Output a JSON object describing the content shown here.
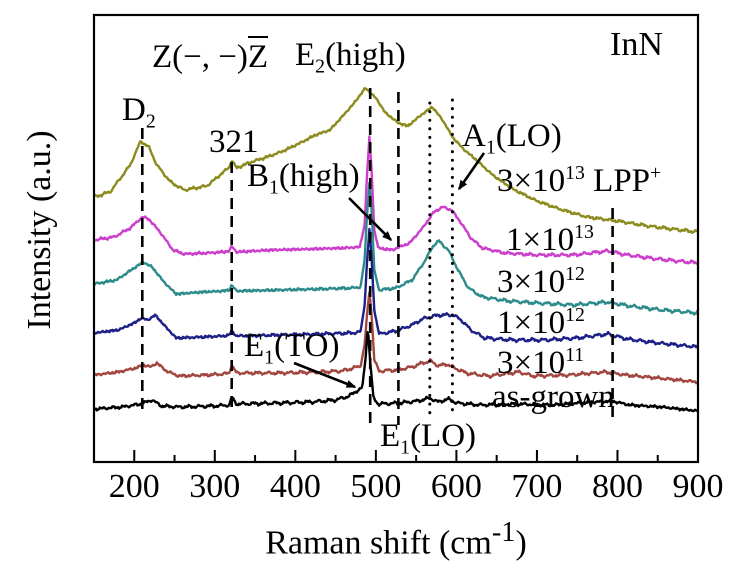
{
  "chart_data": {
    "type": "line",
    "title": "",
    "sample": "InN",
    "scattering_geometry": {
      "pre": "Z(−, −)",
      "barred": "Z"
    },
    "xlabel": {
      "pre": "Raman shift (cm",
      "sup": "-1",
      "post": ")"
    },
    "ylabel": "Intensity (a.u.)",
    "x_range": [
      150,
      900
    ],
    "x_axis_unit": "cm-1",
    "y_axis_unit": "arbitrary units (stacked offsets, 0-450 scale)",
    "x_major_ticks": [
      200,
      300,
      400,
      500,
      600,
      700,
      800,
      900
    ],
    "x_minor_ticks": [
      250,
      350,
      450,
      550,
      650,
      750,
      850
    ],
    "grid": false,
    "legend_position": "right-inline",
    "guides": [
      {
        "v": 210,
        "style": "dashed",
        "marks": "D2"
      },
      {
        "v": 321,
        "style": "dashed",
        "marks": "321"
      },
      {
        "v": 493,
        "style": "dashed",
        "marks": "E2(high)"
      },
      {
        "v": 528,
        "style": "dashed",
        "marks": "B1(high)"
      },
      {
        "v": 567,
        "style": "dotted",
        "marks": "A1(LO)"
      },
      {
        "v": 595,
        "style": "dotted",
        "marks": "E1(LO)"
      },
      {
        "v": 794,
        "style": "dashed",
        "marks": "LPP"
      }
    ],
    "series": [
      {
        "name": "3×10¹³ LPP⁺",
        "color": "#8b8b1e",
        "label": {
          "main": "3×10",
          "sup": "13",
          "tail": " LPP",
          "tail_sup": "+"
        },
        "anchors": [
          [
            150,
            268
          ],
          [
            170,
            273
          ],
          [
            195,
            300
          ],
          [
            208,
            324
          ],
          [
            218,
            318
          ],
          [
            228,
            300
          ],
          [
            245,
            283
          ],
          [
            262,
            275
          ],
          [
            290,
            279
          ],
          [
            308,
            291
          ],
          [
            318,
            298
          ],
          [
            321,
            305
          ],
          [
            327,
            297
          ],
          [
            345,
            303
          ],
          [
            365,
            308
          ],
          [
            385,
            314
          ],
          [
            406,
            322
          ],
          [
            425,
            330
          ],
          [
            443,
            335
          ],
          [
            460,
            350
          ],
          [
            473,
            362
          ],
          [
            487,
            377
          ],
          [
            500,
            367
          ],
          [
            512,
            352
          ],
          [
            528,
            342
          ],
          [
            540,
            339
          ],
          [
            553,
            348
          ],
          [
            570,
            358
          ],
          [
            582,
            346
          ],
          [
            596,
            327
          ],
          [
            610,
            315
          ],
          [
            622,
            307
          ],
          [
            645,
            290
          ],
          [
            670,
            276
          ],
          [
            700,
            264
          ],
          [
            728,
            256
          ],
          [
            762,
            248
          ],
          [
            800,
            244
          ],
          [
            838,
            239
          ],
          [
            868,
            236
          ],
          [
            900,
            233
          ]
        ]
      },
      {
        "name": "1×10¹³",
        "color": "#cc3fcc",
        "label": {
          "main": "1×10",
          "sup": "13"
        },
        "anchors": [
          [
            150,
            225
          ],
          [
            175,
            228
          ],
          [
            195,
            237
          ],
          [
            210,
            248
          ],
          [
            218,
            246
          ],
          [
            232,
            233
          ],
          [
            248,
            215
          ],
          [
            262,
            211
          ],
          [
            290,
            212
          ],
          [
            310,
            213
          ],
          [
            318,
            214
          ],
          [
            321,
            219
          ],
          [
            327,
            213
          ],
          [
            370,
            215
          ],
          [
            420,
            216
          ],
          [
            460,
            217
          ],
          [
            480,
            218
          ],
          [
            486,
            240
          ],
          [
            489,
            290
          ],
          [
            492,
            328
          ],
          [
            495,
            290
          ],
          [
            498,
            235
          ],
          [
            503,
            217
          ],
          [
            520,
            215
          ],
          [
            542,
            222
          ],
          [
            558,
            237
          ],
          [
            572,
            253
          ],
          [
            583,
            258
          ],
          [
            594,
            255
          ],
          [
            605,
            243
          ],
          [
            618,
            227
          ],
          [
            632,
            217
          ],
          [
            660,
            212
          ],
          [
            700,
            210
          ],
          [
            745,
            210
          ],
          [
            788,
            214
          ],
          [
            812,
            210
          ],
          [
            850,
            206
          ],
          [
            900,
            202
          ]
        ]
      },
      {
        "name": "3×10¹²",
        "color": "#2e8b8b",
        "label": {
          "main": "3×10",
          "sup": "12"
        },
        "anchors": [
          [
            150,
            181
          ],
          [
            178,
            185
          ],
          [
            198,
            196
          ],
          [
            211,
            203
          ],
          [
            222,
            198
          ],
          [
            238,
            182
          ],
          [
            252,
            171
          ],
          [
            285,
            173
          ],
          [
            310,
            174
          ],
          [
            318,
            175
          ],
          [
            321,
            180
          ],
          [
            327,
            174
          ],
          [
            380,
            175
          ],
          [
            430,
            176
          ],
          [
            470,
            177
          ],
          [
            481,
            178
          ],
          [
            486,
            205
          ],
          [
            489,
            250
          ],
          [
            492,
            283
          ],
          [
            495,
            250
          ],
          [
            498,
            195
          ],
          [
            504,
            175
          ],
          [
            525,
            177
          ],
          [
            545,
            185
          ],
          [
            560,
            203
          ],
          [
            572,
            220
          ],
          [
            578,
            224
          ],
          [
            590,
            215
          ],
          [
            602,
            195
          ],
          [
            615,
            177
          ],
          [
            632,
            168
          ],
          [
            665,
            164
          ],
          [
            700,
            162
          ],
          [
            745,
            160
          ],
          [
            788,
            163
          ],
          [
            815,
            159
          ],
          [
            855,
            155
          ],
          [
            900,
            152
          ]
        ]
      },
      {
        "name": "1×10¹²",
        "color": "#1d2087",
        "label": {
          "main": "1×10",
          "sup": "12"
        },
        "anchors": [
          [
            150,
            132
          ],
          [
            180,
            135
          ],
          [
            200,
            142
          ],
          [
            209,
            147
          ],
          [
            217,
            145
          ],
          [
            226,
            150
          ],
          [
            238,
            139
          ],
          [
            252,
            127
          ],
          [
            285,
            128
          ],
          [
            310,
            129
          ],
          [
            318,
            130
          ],
          [
            321,
            134
          ],
          [
            327,
            129
          ],
          [
            380,
            130
          ],
          [
            430,
            131
          ],
          [
            470,
            132
          ],
          [
            481,
            133
          ],
          [
            486,
            160
          ],
          [
            489,
            203
          ],
          [
            492,
            236
          ],
          [
            495,
            203
          ],
          [
            498,
            155
          ],
          [
            504,
            131
          ],
          [
            525,
            134
          ],
          [
            545,
            140
          ],
          [
            558,
            146
          ],
          [
            566,
            148
          ],
          [
            580,
            150
          ],
          [
            596,
            150
          ],
          [
            606,
            145
          ],
          [
            618,
            135
          ],
          [
            635,
            127
          ],
          [
            670,
            125
          ],
          [
            710,
            125
          ],
          [
            750,
            127
          ],
          [
            788,
            131
          ],
          [
            812,
            126
          ],
          [
            850,
            122
          ],
          [
            900,
            118
          ]
        ]
      },
      {
        "name": "3×10¹¹",
        "color": "#a1473f",
        "label": {
          "main": "3×10",
          "sup": "11"
        },
        "anchors": [
          [
            150,
            90
          ],
          [
            180,
            93
          ],
          [
            202,
            97
          ],
          [
            212,
            100
          ],
          [
            220,
            98
          ],
          [
            228,
            102
          ],
          [
            240,
            94
          ],
          [
            255,
            89
          ],
          [
            290,
            90
          ],
          [
            310,
            91
          ],
          [
            318,
            92
          ],
          [
            321,
            100
          ],
          [
            327,
            92
          ],
          [
            380,
            92
          ],
          [
            430,
            93
          ],
          [
            458,
            94
          ],
          [
            472,
            97
          ],
          [
            481,
            99
          ],
          [
            486,
            120
          ],
          [
            489,
            150
          ],
          [
            492,
            174
          ],
          [
            495,
            147
          ],
          [
            498,
            105
          ],
          [
            504,
            94
          ],
          [
            525,
            95
          ],
          [
            545,
            98
          ],
          [
            558,
            102
          ],
          [
            568,
            104
          ],
          [
            578,
            99
          ],
          [
            588,
            101
          ],
          [
            598,
            97
          ],
          [
            612,
            92
          ],
          [
            640,
            89
          ],
          [
            678,
            93
          ],
          [
            695,
            89
          ],
          [
            740,
            90
          ],
          [
            785,
            93
          ],
          [
            810,
            90
          ],
          [
            850,
            87
          ],
          [
            900,
            83
          ]
        ]
      },
      {
        "name": "as-grown",
        "color": "#000000",
        "label": {
          "main": "as-grown",
          "sup": ""
        },
        "anchors": [
          [
            150,
            56
          ],
          [
            185,
            58
          ],
          [
            208,
            61
          ],
          [
            222,
            65
          ],
          [
            234,
            59
          ],
          [
            255,
            58
          ],
          [
            300,
            59
          ],
          [
            318,
            60
          ],
          [
            321,
            68
          ],
          [
            327,
            61
          ],
          [
            380,
            62
          ],
          [
            420,
            63
          ],
          [
            450,
            65
          ],
          [
            467,
            69
          ],
          [
            476,
            74
          ],
          [
            483,
            77
          ],
          [
            487,
            105
          ],
          [
            490,
            138
          ],
          [
            493,
            103
          ],
          [
            497,
            67
          ],
          [
            503,
            61
          ],
          [
            530,
            62
          ],
          [
            552,
            64
          ],
          [
            567,
            67
          ],
          [
            577,
            63
          ],
          [
            590,
            66
          ],
          [
            600,
            62
          ],
          [
            630,
            60
          ],
          [
            675,
            61
          ],
          [
            720,
            60
          ],
          [
            770,
            63
          ],
          [
            793,
            64
          ],
          [
            815,
            60
          ],
          [
            855,
            58
          ],
          [
            900,
            54
          ]
        ]
      }
    ]
  },
  "labels": {
    "d2": {
      "base": "D",
      "sub": "2",
      "post": ""
    },
    "p321": "321",
    "e2high": {
      "base": "E",
      "sub": "2",
      "post": "(high)"
    },
    "b1high": {
      "base": "B",
      "sub": "1",
      "post": "(high)"
    },
    "a1lo": {
      "base": "A",
      "sub": "1",
      "post": "(LO)"
    },
    "e1to": {
      "base": "E",
      "sub": "1",
      "post": "(TO)"
    },
    "e1lo": {
      "base": "E",
      "sub": "1",
      "post": "(LO)"
    }
  }
}
